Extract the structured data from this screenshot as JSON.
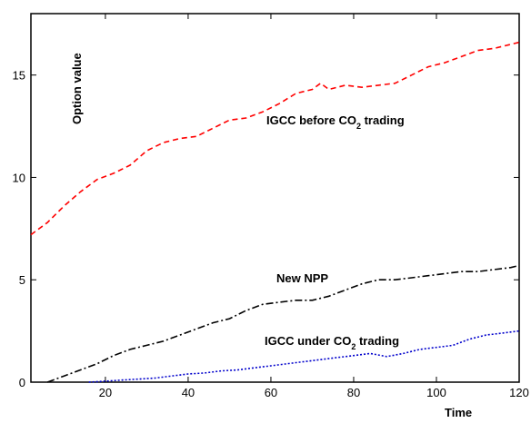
{
  "chart_data": {
    "type": "line",
    "xlabel": "Time",
    "ylabel": "Option value",
    "xlim": [
      2,
      120
    ],
    "ylim": [
      0,
      18
    ],
    "x_ticks": [
      20,
      40,
      60,
      80,
      100,
      120
    ],
    "y_ticks": [
      0,
      5,
      10,
      15
    ],
    "grid": false,
    "legend": "none",
    "series": [
      {
        "name": "IGCC before CO2 trading",
        "label_main": "IGCC before CO",
        "label_sub": "2",
        "label_tail": " trading",
        "color": "#ff0000",
        "dash": "dashed",
        "x": [
          2,
          6,
          10,
          14,
          18,
          22,
          26,
          30,
          34,
          38,
          42,
          46,
          50,
          54,
          58,
          62,
          66,
          70,
          72,
          74,
          78,
          82,
          86,
          90,
          94,
          98,
          102,
          106,
          110,
          114,
          118,
          120
        ],
        "values": [
          7.2,
          7.8,
          8.6,
          9.3,
          9.9,
          10.2,
          10.6,
          11.3,
          11.7,
          11.9,
          12.0,
          12.4,
          12.8,
          12.9,
          13.2,
          13.6,
          14.1,
          14.3,
          14.6,
          14.3,
          14.5,
          14.4,
          14.5,
          14.6,
          15.0,
          15.4,
          15.6,
          15.9,
          16.2,
          16.3,
          16.5,
          16.6
        ]
      },
      {
        "name": "New NPP",
        "label_main": "New NPP",
        "label_sub": "",
        "label_tail": "",
        "color": "#000000",
        "dash": "dashdot",
        "x": [
          6,
          10,
          14,
          18,
          22,
          26,
          30,
          34,
          38,
          42,
          46,
          50,
          54,
          58,
          62,
          66,
          70,
          74,
          78,
          82,
          86,
          90,
          94,
          98,
          102,
          106,
          110,
          114,
          118,
          120
        ],
        "values": [
          0.0,
          0.3,
          0.6,
          0.9,
          1.3,
          1.6,
          1.8,
          2.0,
          2.3,
          2.6,
          2.9,
          3.1,
          3.5,
          3.8,
          3.9,
          4.0,
          4.0,
          4.2,
          4.5,
          4.8,
          5.0,
          5.0,
          5.1,
          5.2,
          5.3,
          5.4,
          5.4,
          5.5,
          5.6,
          5.7
        ]
      },
      {
        "name": "IGCC under CO2 trading",
        "label_main": "IGCC under CO",
        "label_sub": "2",
        "label_tail": " trading",
        "color": "#0000cc",
        "dash": "dotted",
        "x": [
          16,
          20,
          24,
          28,
          32,
          36,
          40,
          44,
          48,
          52,
          56,
          60,
          64,
          68,
          72,
          76,
          80,
          84,
          88,
          92,
          96,
          100,
          104,
          108,
          112,
          116,
          120
        ],
        "values": [
          0.0,
          0.05,
          0.1,
          0.15,
          0.2,
          0.3,
          0.4,
          0.45,
          0.55,
          0.6,
          0.7,
          0.8,
          0.9,
          1.0,
          1.1,
          1.2,
          1.3,
          1.4,
          1.25,
          1.4,
          1.6,
          1.7,
          1.8,
          2.1,
          2.3,
          2.4,
          2.5
        ]
      }
    ]
  }
}
